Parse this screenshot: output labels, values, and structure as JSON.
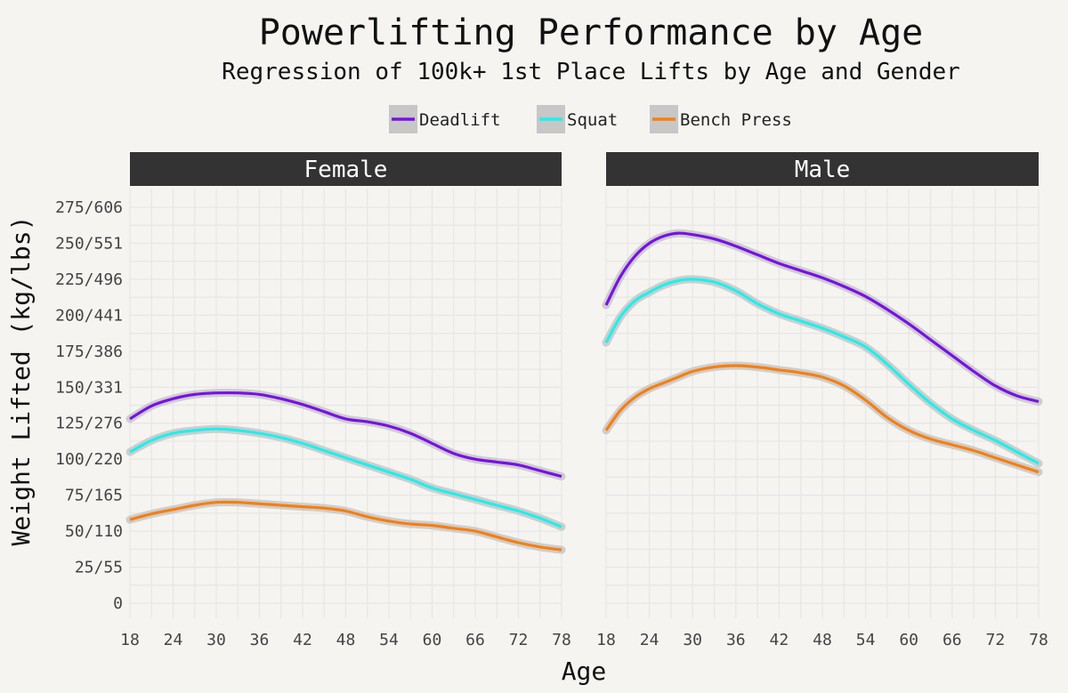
{
  "title": "Powerlifting Performance by Age",
  "subtitle": "Regression of 100k+ 1st Place Lifts by Age and Gender",
  "colors": {
    "background": "#f5f4f0",
    "facet_strip": "#333333",
    "confidence_band": "#c7c7c7",
    "Deadlift": "#7a10e8",
    "Squat": "#1df0ee",
    "Bench Press": "#f77f0f"
  },
  "chart_data": {
    "type": "line",
    "title": "Powerlifting Performance by Age",
    "subtitle": "Regression of 100k+ 1st Place Lifts by Age and Gender",
    "xlabel": "Age",
    "ylabel": "Weight Lifted (kg/lbs)",
    "xlim": [
      18,
      78
    ],
    "ylim": [
      0,
      275
    ],
    "x_ticks": [
      18,
      24,
      30,
      36,
      42,
      48,
      54,
      60,
      66,
      72,
      78
    ],
    "y_ticks": [
      0,
      25,
      50,
      75,
      100,
      125,
      150,
      175,
      200,
      225,
      250,
      275
    ],
    "y_tick_labels": [
      "0",
      "25/55",
      "50/110",
      "75/165",
      "100/220",
      "125/276",
      "150/331",
      "175/386",
      "200/441",
      "225/496",
      "250/551",
      "275/606"
    ],
    "grid": true,
    "legend": {
      "position": "top",
      "entries": [
        "Deadlift",
        "Squat",
        "Bench Press"
      ]
    },
    "facets": [
      {
        "label": "Female",
        "series": [
          {
            "name": "Deadlift",
            "x": [
              18,
              21,
              24,
              27,
              30,
              33,
              36,
              39,
              42,
              45,
              48,
              51,
              54,
              57,
              60,
              63,
              66,
              69,
              72,
              75,
              78
            ],
            "y": [
              128,
              137,
              142,
              145,
              146,
              146,
              145,
              142,
              138,
              133,
              128,
              126,
              123,
              118,
              111,
              104,
              100,
              98,
              96,
              92,
              88
            ]
          },
          {
            "name": "Squat",
            "x": [
              18,
              21,
              24,
              27,
              30,
              33,
              36,
              39,
              42,
              45,
              48,
              51,
              54,
              57,
              60,
              63,
              66,
              69,
              72,
              75,
              78
            ],
            "y": [
              105,
              113,
              118,
              120,
              121,
              120,
              118,
              115,
              111,
              106,
              101,
              96,
              91,
              86,
              80,
              76,
              72,
              68,
              64,
              59,
              53
            ]
          },
          {
            "name": "Bench Press",
            "x": [
              18,
              21,
              24,
              27,
              30,
              33,
              36,
              39,
              42,
              45,
              48,
              51,
              54,
              57,
              60,
              63,
              66,
              69,
              72,
              75,
              78
            ],
            "y": [
              58,
              62,
              65,
              68,
              70,
              70,
              69,
              68,
              67,
              66,
              64,
              60,
              57,
              55,
              54,
              52,
              50,
              46,
              42,
              39,
              37
            ]
          }
        ]
      },
      {
        "label": "Male",
        "series": [
          {
            "name": "Deadlift",
            "x": [
              18,
              20,
              22,
              24,
              26,
              28,
              30,
              33,
              36,
              39,
              42,
              45,
              48,
              51,
              54,
              57,
              60,
              63,
              66,
              69,
              72,
              75,
              78
            ],
            "y": [
              207,
              227,
              241,
              250,
              255,
              257,
              256,
              253,
              248,
              242,
              236,
              231,
              226,
              220,
              213,
              204,
              194,
              183,
              172,
              161,
              151,
              144,
              140
            ]
          },
          {
            "name": "Squat",
            "x": [
              18,
              20,
              22,
              24,
              26,
              28,
              30,
              33,
              36,
              39,
              42,
              45,
              48,
              51,
              54,
              57,
              60,
              63,
              66,
              69,
              72,
              75,
              78
            ],
            "y": [
              181,
              199,
              210,
              216,
              221,
              224,
              225,
              223,
              217,
              208,
              201,
              196,
              191,
              185,
              178,
              166,
              152,
              139,
              128,
              120,
              113,
              105,
              97
            ]
          },
          {
            "name": "Bench Press",
            "x": [
              18,
              20,
              22,
              24,
              26,
              28,
              30,
              33,
              36,
              39,
              42,
              45,
              48,
              51,
              54,
              57,
              60,
              63,
              66,
              69,
              72,
              75,
              78
            ],
            "y": [
              120,
              134,
              143,
              149,
              153,
              157,
              161,
              164,
              165,
              164,
              162,
              160,
              157,
              151,
              141,
              129,
              120,
              114,
              110,
              106,
              101,
              96,
              91
            ]
          }
        ]
      }
    ]
  }
}
